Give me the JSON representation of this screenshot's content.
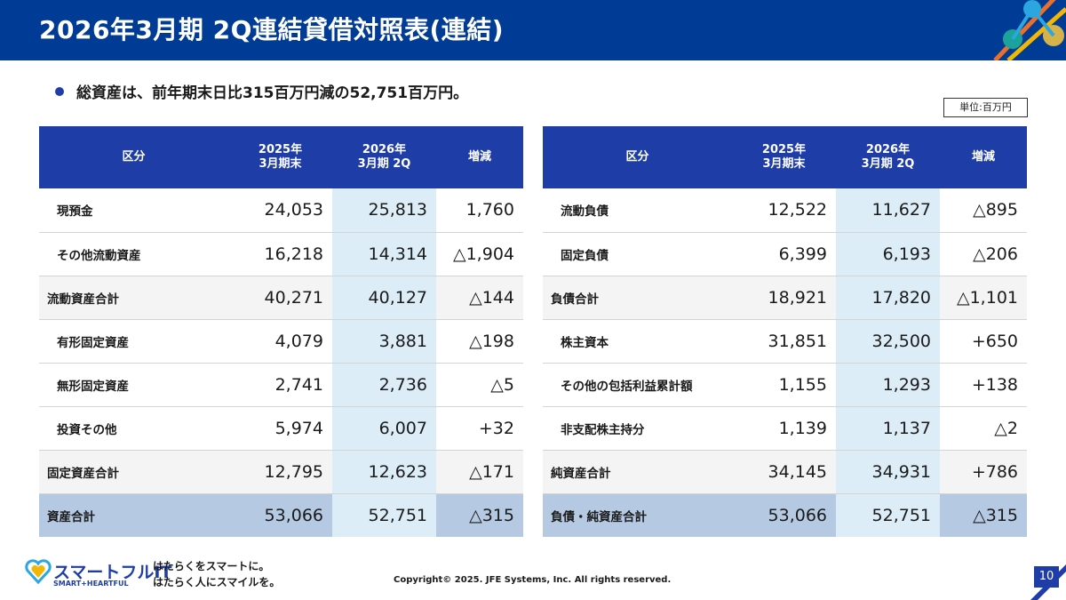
{
  "slide": {
    "title": "2026年3月期 2Q連結貸借対照表(連結)",
    "bullet": "総資産は、前年期末日比315百万円減の52,751百万円。",
    "unit": "単位:百万円",
    "page_number": "10"
  },
  "table_header": {
    "category": "区分",
    "prev_line1": "2025年",
    "prev_line2": "3月期末",
    "curr_line1": "2026年",
    "curr_line2": "3月期 2Q",
    "change": "増減"
  },
  "assets": [
    {
      "label": "現預金",
      "prev": "24,053",
      "curr": "25,813",
      "change": "1,760"
    },
    {
      "label": "その他流動資産",
      "prev": "16,218",
      "curr": "14,314",
      "change": "△1,904"
    },
    {
      "label": "流動資産合計",
      "prev": "40,271",
      "curr": "40,127",
      "change": "△144"
    },
    {
      "label": "有形固定資産",
      "prev": "4,079",
      "curr": "3,881",
      "change": "△198"
    },
    {
      "label": "無形固定資産",
      "prev": "2,741",
      "curr": "2,736",
      "change": "△5"
    },
    {
      "label": "投資その他",
      "prev": "5,974",
      "curr": "6,007",
      "change": "+32"
    },
    {
      "label": "固定資産合計",
      "prev": "12,795",
      "curr": "12,623",
      "change": "△171"
    },
    {
      "label": "資産合計",
      "prev": "53,066",
      "curr": "52,751",
      "change": "△315"
    }
  ],
  "liabilities": [
    {
      "label": "流動負債",
      "prev": "12,522",
      "curr": "11,627",
      "change": "△895"
    },
    {
      "label": "固定負債",
      "prev": "6,399",
      "curr": "6,193",
      "change": "△206"
    },
    {
      "label": "負債合計",
      "prev": "18,921",
      "curr": "17,820",
      "change": "△1,101"
    },
    {
      "label": "株主資本",
      "prev": "31,851",
      "curr": "32,500",
      "change": "+650"
    },
    {
      "label": "その他の包括利益累計額",
      "prev": "1,155",
      "curr": "1,293",
      "change": "+138"
    },
    {
      "label": "非支配株主持分",
      "prev": "1,139",
      "curr": "1,137",
      "change": "△2"
    },
    {
      "label": "純資産合計",
      "prev": "34,145",
      "curr": "34,931",
      "change": "+786"
    },
    {
      "label": "負債・純資産合計",
      "prev": "53,066",
      "curr": "52,751",
      "change": "△315"
    }
  ],
  "footer": {
    "logo_name": "スマートフルIT",
    "logo_tagline": "SMART+HEARTFUL",
    "slogan_line1": "はたらくをスマートに。",
    "slogan_line2": "はたらく人にスマイルを。",
    "copyright": "Copyright© 2025. JFE Systems, Inc. All rights reserved."
  },
  "colors": {
    "header_bg": "#003b95",
    "table_header_bg": "#1f3da6",
    "current_col_bg": "#dcedf8",
    "total_row_bg": "#b6c9e3"
  }
}
